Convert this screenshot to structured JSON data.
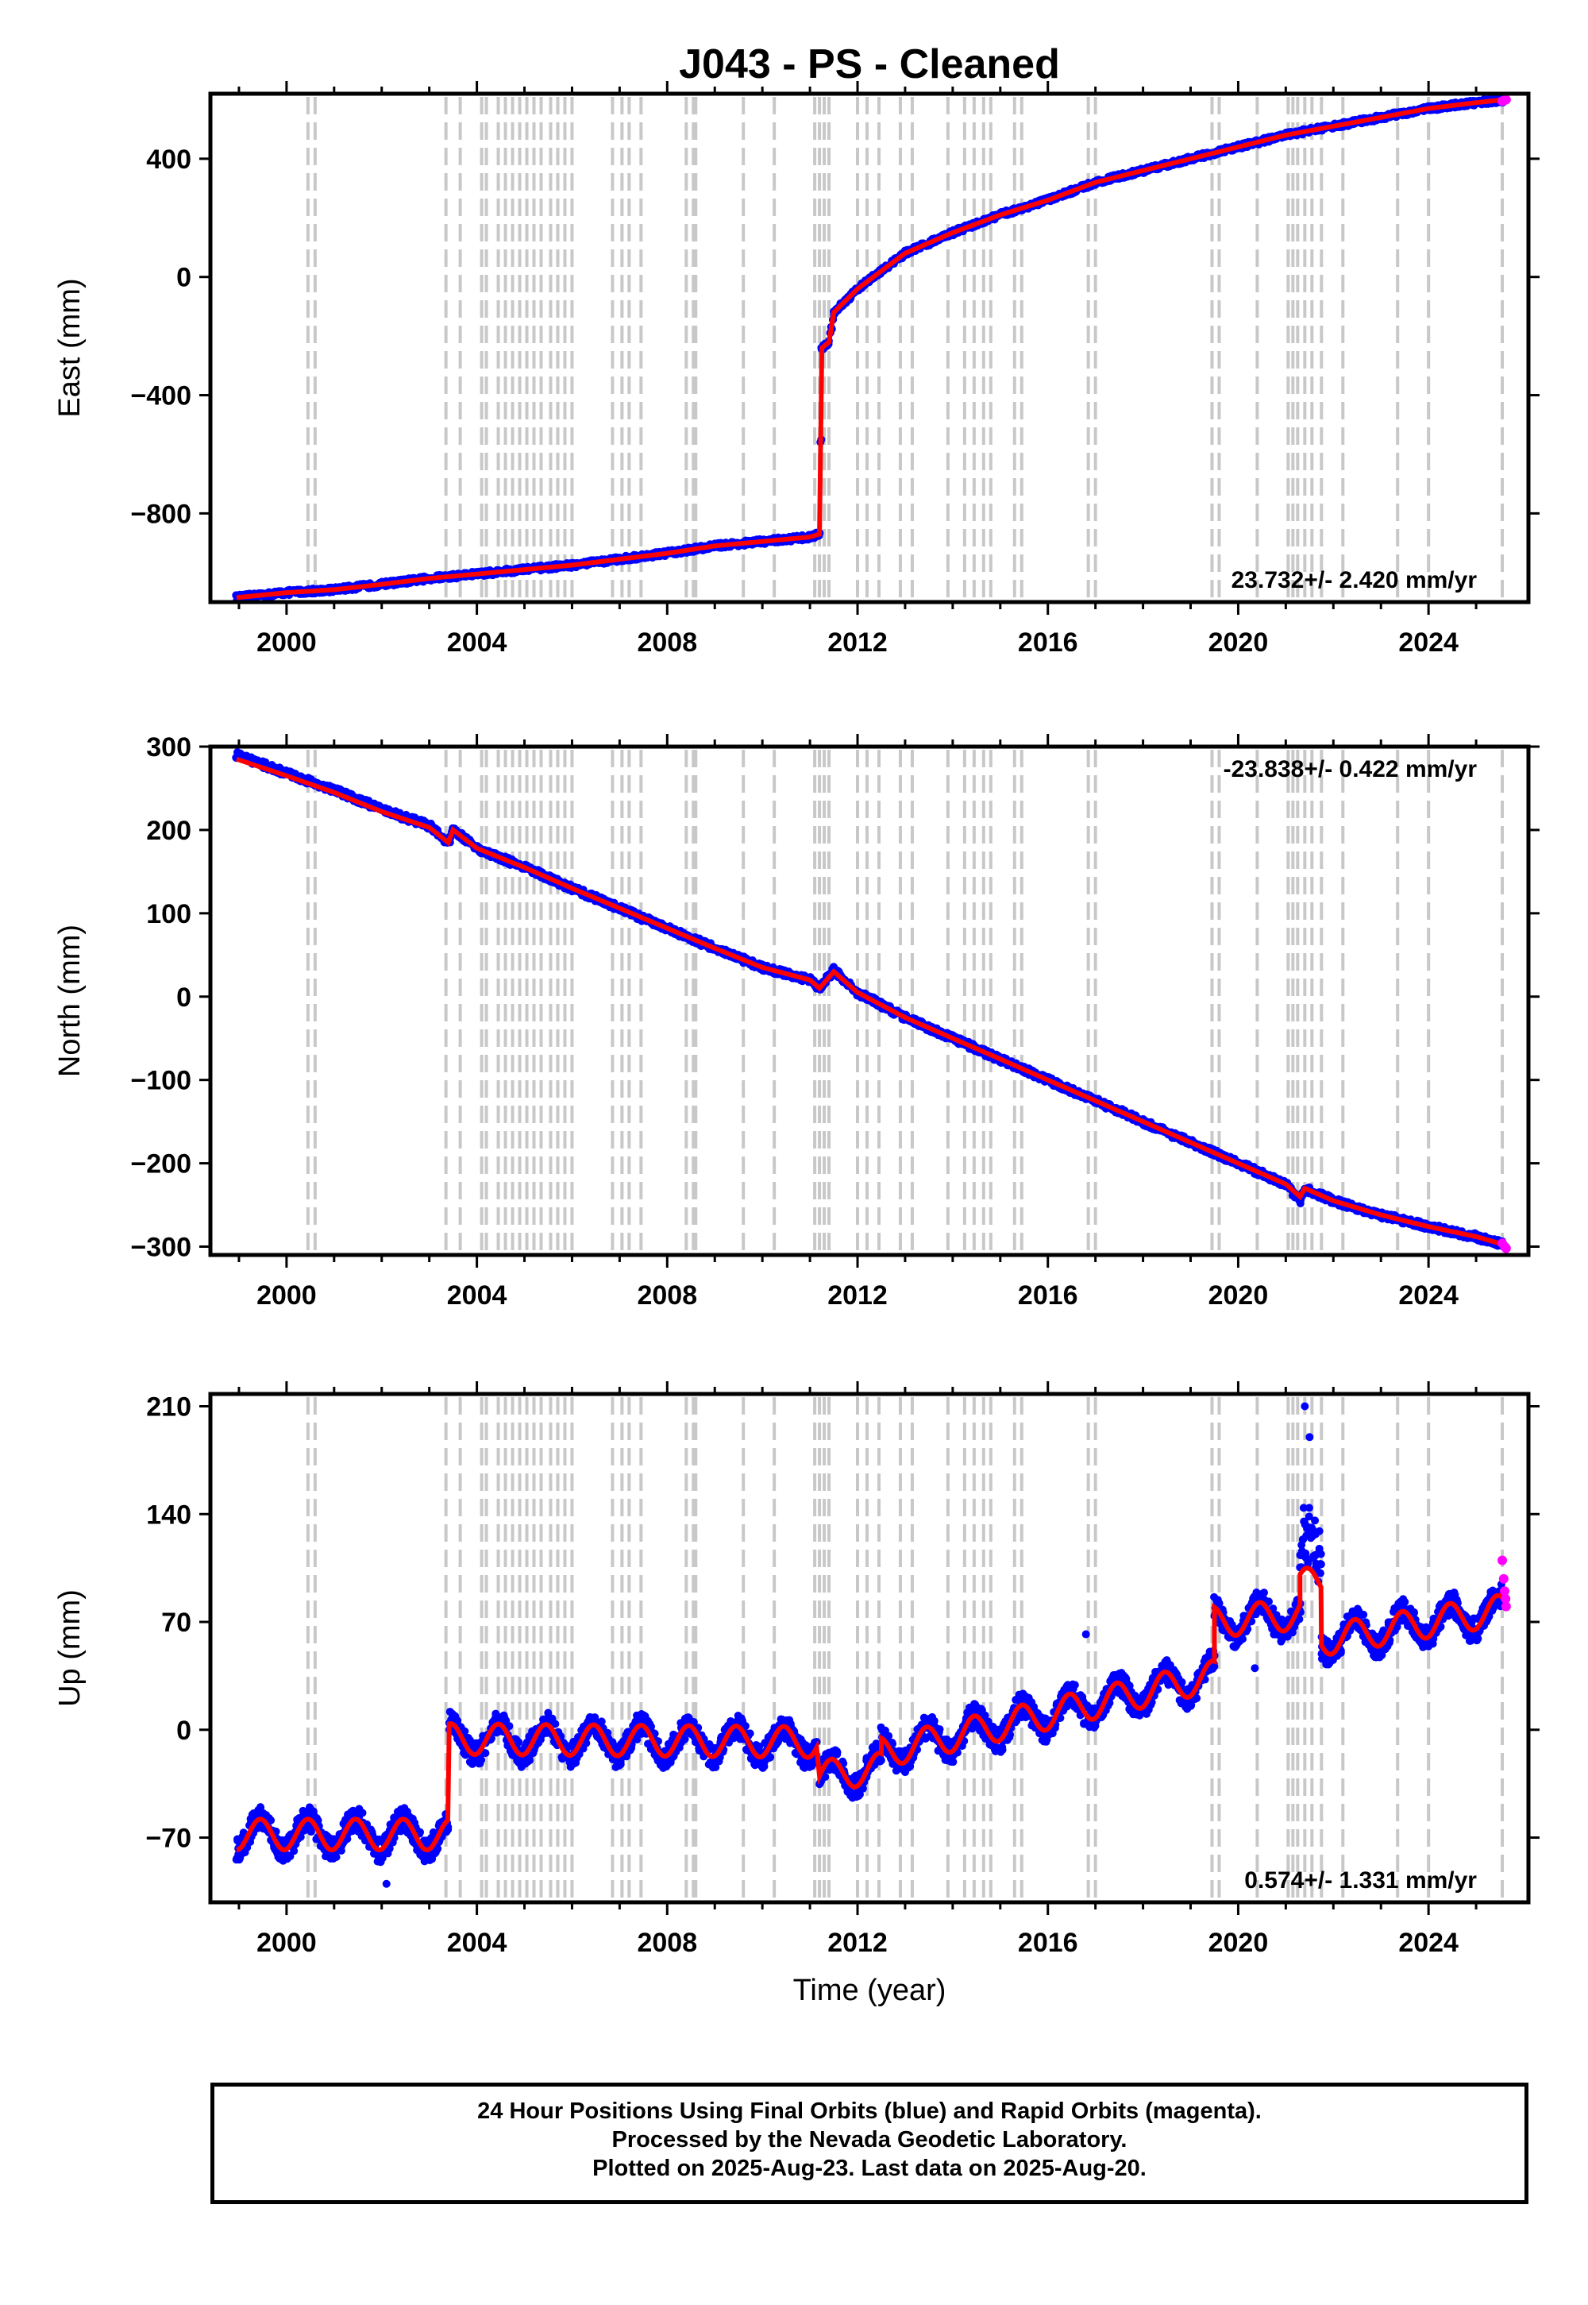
{
  "chart_data": [
    {
      "type": "scatter",
      "title": "J043  - PS - Cleaned",
      "ylabel": "East (mm)",
      "xlim": [
        1998.4,
        2026.1
      ],
      "ylim": [
        -1100,
        620
      ],
      "yticks": [
        -800,
        -400,
        0,
        400
      ],
      "xticks": [
        2000,
        2004,
        2008,
        2012,
        2016,
        2020,
        2024
      ],
      "rate_label": "23.732+/- 2.420 mm/yr",
      "rate_position": "bottom-right",
      "series": [
        {
          "kind": "daily positions",
          "color": "#0000ff",
          "x": [
            1998.95,
            2000.0,
            2001.0,
            2002.0,
            2003.0,
            2004.0,
            2005.0,
            2006.0,
            2007.0,
            2008.0,
            2009.0,
            2010.0,
            2011.0,
            2011.2,
            2011.25,
            2011.4,
            2011.5,
            2012.0,
            2013.0,
            2014.0,
            2015.0,
            2016.0,
            2017.0,
            2018.0,
            2019.0,
            2020.0,
            2021.0,
            2022.0,
            2023.0,
            2024.0,
            2025.0,
            2025.6
          ],
          "y": [
            -1085,
            -1068,
            -1058,
            -1040,
            -1020,
            -1005,
            -990,
            -975,
            -955,
            -935,
            -910,
            -895,
            -880,
            -870,
            -240,
            -220,
            -120,
            -40,
            80,
            150,
            210,
            260,
            320,
            360,
            400,
            440,
            480,
            510,
            540,
            570,
            590,
            600
          ]
        },
        {
          "kind": "model",
          "color": "#ff0000",
          "x": [
            1998.95,
            2000.0,
            2001.0,
            2002.0,
            2003.0,
            2004.0,
            2005.0,
            2006.0,
            2007.0,
            2008.0,
            2009.0,
            2010.0,
            2011.0,
            2011.2,
            2011.25,
            2011.4,
            2011.5,
            2012.0,
            2013.0,
            2014.0,
            2015.0,
            2016.0,
            2017.0,
            2018.0,
            2019.0,
            2020.0,
            2021.0,
            2022.0,
            2023.0,
            2024.0,
            2025.0,
            2025.6
          ],
          "y": [
            -1085,
            -1068,
            -1058,
            -1040,
            -1020,
            -1005,
            -990,
            -975,
            -955,
            -935,
            -910,
            -895,
            -880,
            -870,
            -240,
            -220,
            -120,
            -40,
            80,
            150,
            210,
            260,
            320,
            360,
            400,
            440,
            480,
            510,
            540,
            570,
            590,
            600
          ]
        },
        {
          "kind": "rapid orbits",
          "color": "#ff00ff",
          "x": [
            2025.55,
            2025.6,
            2025.63
          ],
          "y": [
            595,
            598,
            600
          ]
        }
      ]
    },
    {
      "type": "scatter",
      "ylabel": "North (mm)",
      "xlim": [
        1998.4,
        2026.1
      ],
      "ylim": [
        -310,
        300
      ],
      "yticks": [
        -300,
        -200,
        -100,
        0,
        100,
        200,
        300
      ],
      "xticks": [
        2000,
        2004,
        2008,
        2012,
        2016,
        2020,
        2024
      ],
      "rate_label": "-23.838+/- 0.422 mm/yr",
      "rate_position": "top-right",
      "series": [
        {
          "kind": "daily positions",
          "color": "#0000ff",
          "x": [
            1998.95,
            2000.0,
            2001.0,
            2002.0,
            2003.0,
            2003.4,
            2003.5,
            2004.0,
            2005.0,
            2006.0,
            2007.0,
            2008.0,
            2009.0,
            2010.0,
            2011.0,
            2011.2,
            2011.5,
            2012.0,
            2013.0,
            2014.0,
            2015.0,
            2016.0,
            2017.0,
            2018.0,
            2019.0,
            2020.0,
            2021.0,
            2021.3,
            2021.4,
            2022.0,
            2023.0,
            2024.0,
            2025.0,
            2025.6
          ],
          "y": [
            290,
            268,
            248,
            225,
            205,
            185,
            200,
            178,
            155,
            130,
            106,
            82,
            58,
            35,
            20,
            10,
            32,
            5,
            -25,
            -50,
            -75,
            -100,
            -125,
            -150,
            -175,
            -200,
            -225,
            -245,
            -230,
            -245,
            -262,
            -276,
            -288,
            -298
          ]
        },
        {
          "kind": "model",
          "color": "#ff0000",
          "x": [
            1998.95,
            2000.0,
            2001.0,
            2002.0,
            2003.0,
            2003.4,
            2003.5,
            2004.0,
            2005.0,
            2006.0,
            2007.0,
            2008.0,
            2009.0,
            2010.0,
            2011.0,
            2011.2,
            2011.5,
            2012.0,
            2013.0,
            2014.0,
            2015.0,
            2016.0,
            2017.0,
            2018.0,
            2019.0,
            2020.0,
            2021.0,
            2021.3,
            2021.4,
            2022.0,
            2023.0,
            2024.0,
            2025.0,
            2025.6
          ],
          "y": [
            285,
            265,
            245,
            222,
            203,
            185,
            200,
            178,
            155,
            130,
            106,
            82,
            58,
            35,
            20,
            10,
            30,
            5,
            -25,
            -50,
            -75,
            -100,
            -125,
            -150,
            -175,
            -200,
            -225,
            -240,
            -230,
            -245,
            -262,
            -276,
            -288,
            -298
          ]
        },
        {
          "kind": "rapid orbits",
          "color": "#ff00ff",
          "x": [
            2025.55,
            2025.6,
            2025.63
          ],
          "y": [
            -296,
            -300,
            -302
          ]
        }
      ]
    },
    {
      "type": "scatter",
      "ylabel": "Up (mm)",
      "xlabel": "Time (year)",
      "xlim": [
        1998.4,
        2026.1
      ],
      "ylim": [
        -112,
        218
      ],
      "yticks": [
        -70,
        0,
        70,
        140,
        210
      ],
      "xticks": [
        2000,
        2004,
        2008,
        2012,
        2016,
        2020,
        2024
      ],
      "rate_label": "0.574+/- 1.331 mm/yr",
      "rate_position": "bottom-right",
      "series": [
        {
          "kind": "daily positions",
          "color": "#0000ff",
          "segments": [
            {
              "x": [
                1998.95,
                2003.4
              ],
              "base": [
                -68,
                -68
              ]
            },
            {
              "x": [
                2003.42,
                2011.15
              ],
              "base": [
                -6,
                -8
              ]
            },
            {
              "x": [
                2011.2,
                2012.5
              ],
              "base": [
                -30,
                -25
              ]
            },
            {
              "x": [
                2012.5,
                2019.5
              ],
              "base": [
                -15,
                35
              ]
            },
            {
              "x": [
                2019.5,
                2021.3
              ],
              "base": [
                70,
                75
              ]
            },
            {
              "x": [
                2021.3,
                2021.75
              ],
              "base": [
                95,
                95
              ]
            },
            {
              "x": [
                2021.75,
                2025.6
              ],
              "base": [
                58,
                78
              ]
            }
          ],
          "amplitude": 10,
          "scatter": 8
        },
        {
          "kind": "model",
          "color": "#ff0000"
        },
        {
          "kind": "rapid orbits",
          "color": "#ff00ff",
          "x": [
            2025.55,
            2025.58,
            2025.6,
            2025.62,
            2025.63
          ],
          "y": [
            110,
            98,
            90,
            85,
            80
          ]
        }
      ]
    }
  ],
  "event_lines": [
    2000.45,
    2000.6,
    2003.35,
    2003.65,
    2004.1,
    2004.2,
    2004.45,
    2004.6,
    2004.75,
    2004.9,
    2005.05,
    2005.2,
    2005.35,
    2005.55,
    2005.7,
    2005.85,
    2006.0,
    2006.85,
    2007.05,
    2007.2,
    2007.45,
    2008.4,
    2008.55,
    2008.6,
    2009.6,
    2010.25,
    2011.1,
    2011.2,
    2011.3,
    2011.4,
    2012.0,
    2012.2,
    2012.45,
    2012.9,
    2013.15,
    2013.9,
    2014.25,
    2014.45,
    2014.65,
    2014.8,
    2015.3,
    2015.45,
    2016.85,
    2017.0,
    2019.45,
    2019.6,
    2020.4,
    2021.05,
    2021.15,
    2021.25,
    2021.4,
    2021.55,
    2021.75,
    2022.2,
    2023.35,
    2024.0,
    2025.55
  ],
  "footer": {
    "line1": "24 Hour Positions Using Final Orbits (blue) and Rapid Orbits (magenta).",
    "line2": "Processed by the Nevada Geodetic Laboratory.",
    "line3": "Plotted on 2025-Aug-23. Last data on 2025-Aug-20."
  },
  "colors": {
    "final": "#0000ff",
    "model": "#ff0000",
    "rapid": "#ff00ff",
    "event": "#c8c8c8"
  }
}
